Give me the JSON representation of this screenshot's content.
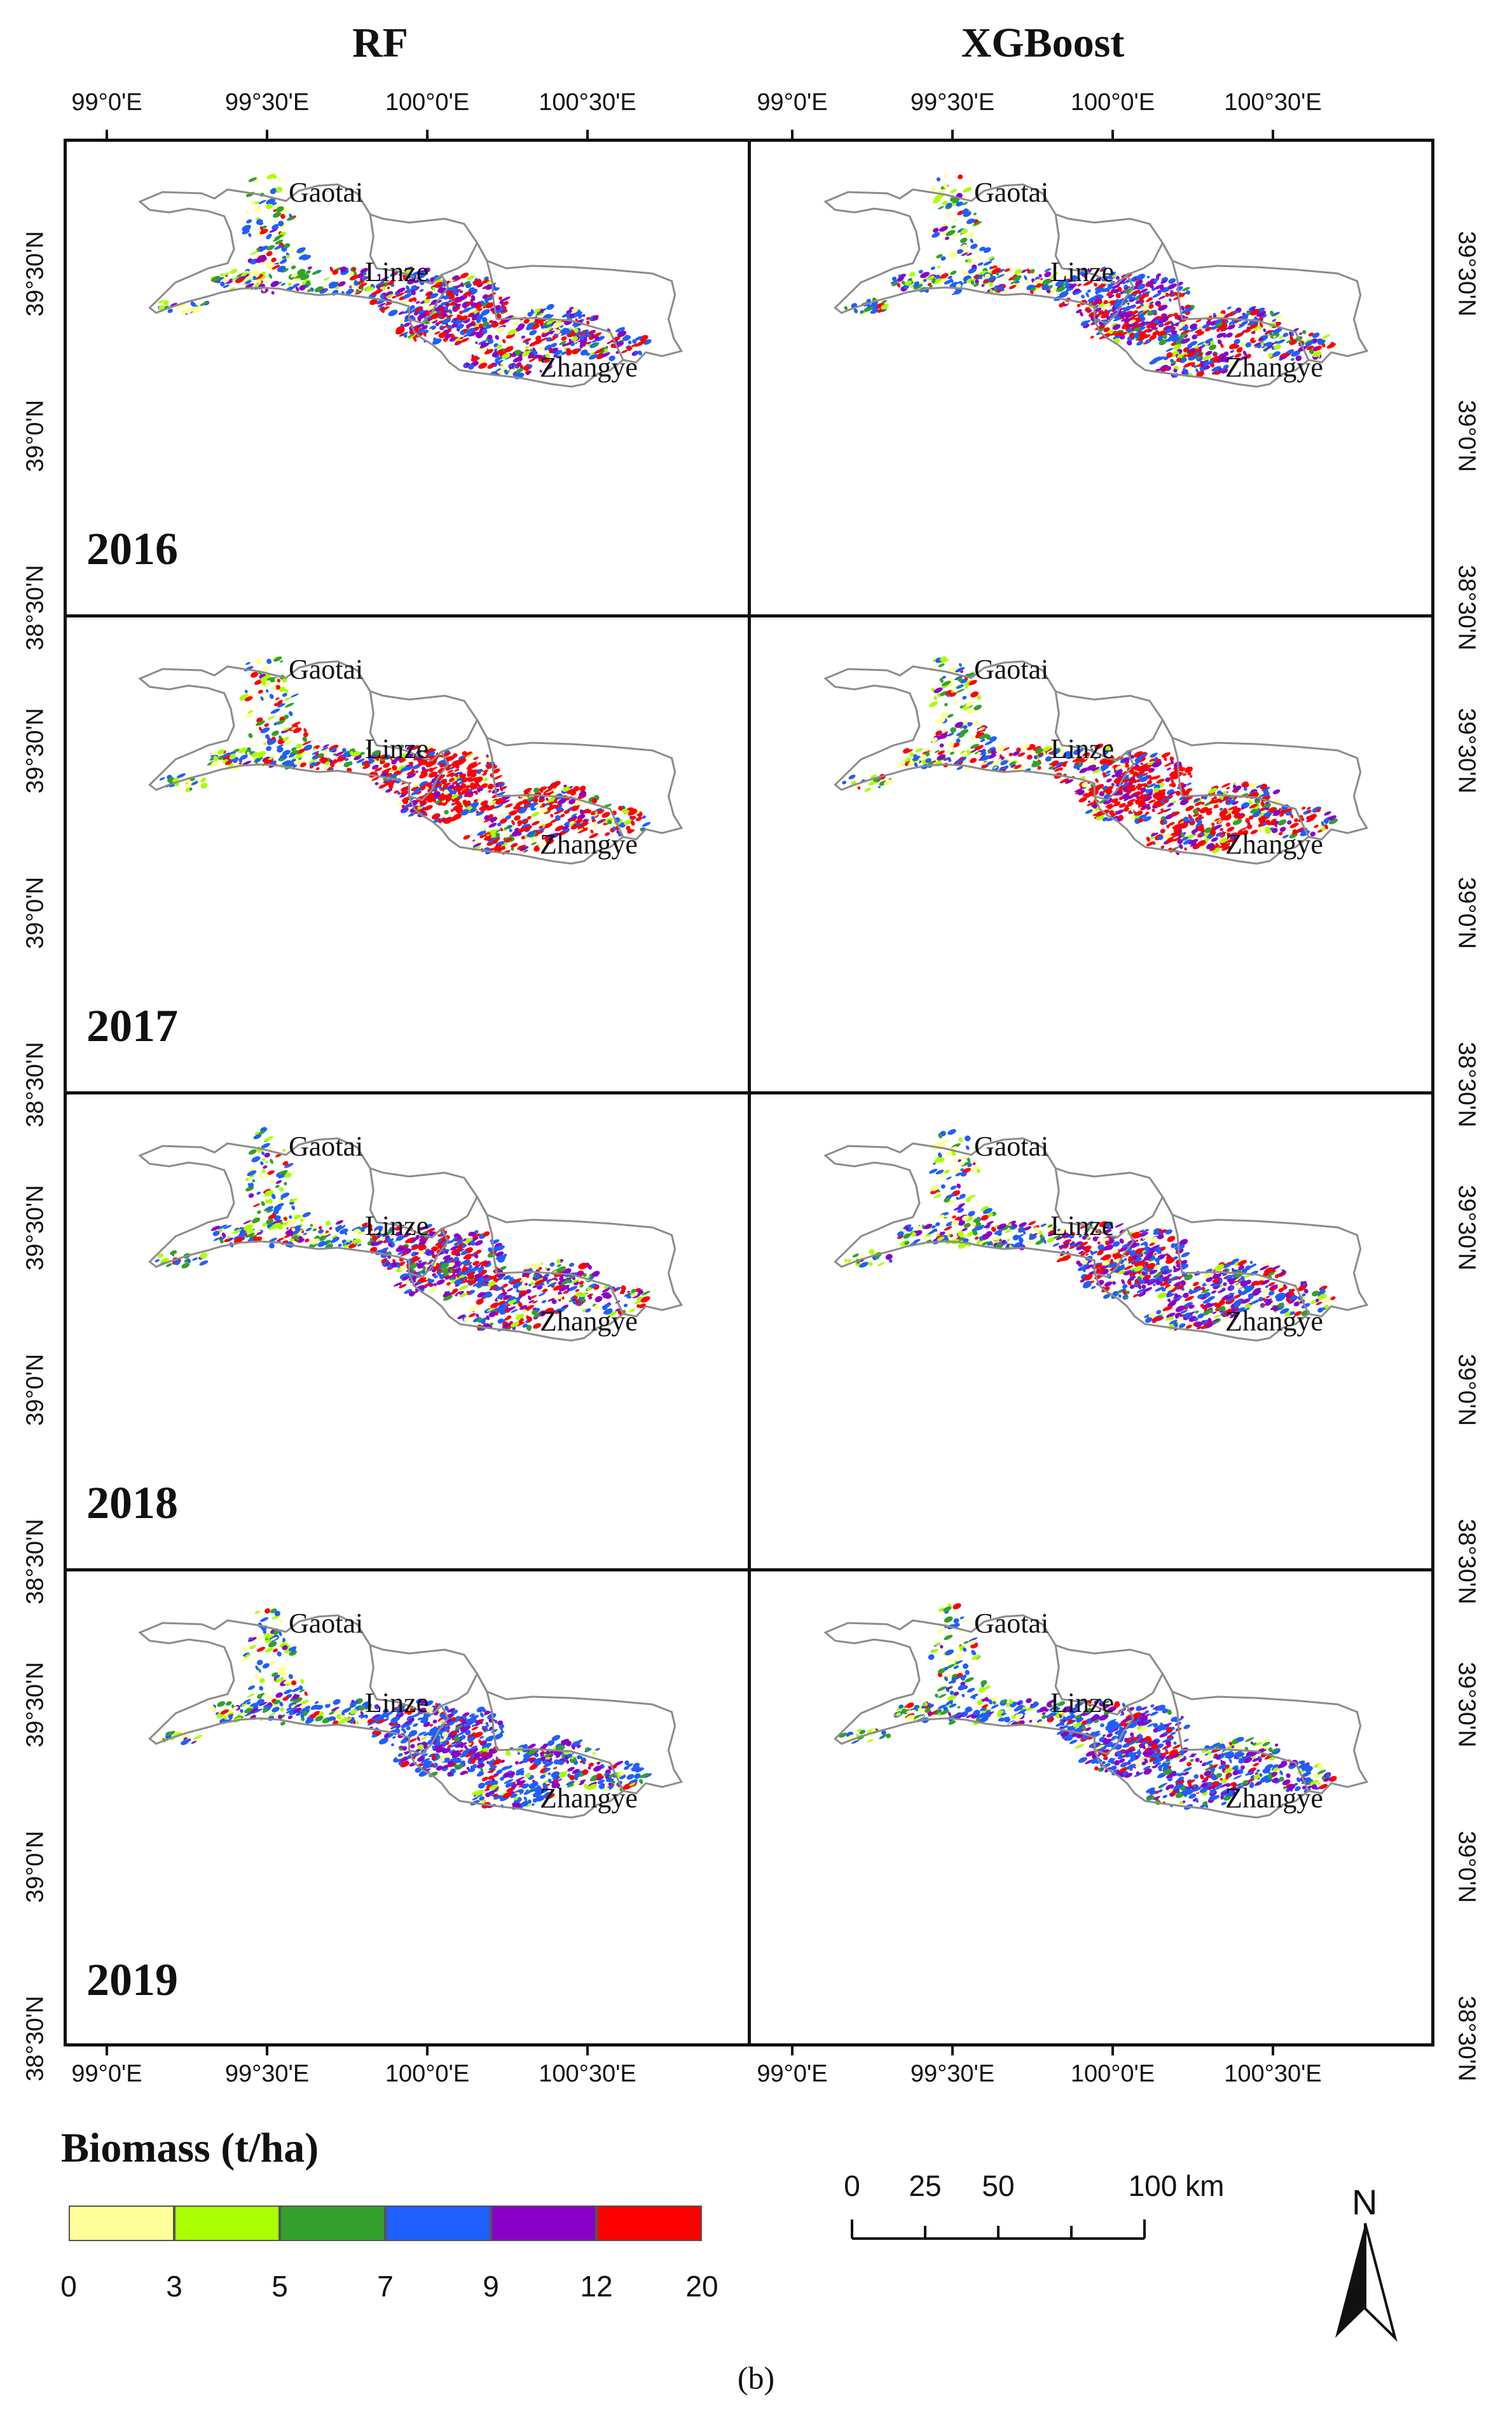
{
  "columns": [
    {
      "title": "RF"
    },
    {
      "title": "XGBoost"
    }
  ],
  "years": [
    "2016",
    "2017",
    "2018",
    "2019"
  ],
  "place_names": {
    "gaotai": "Gaotai",
    "linze": "Linze",
    "zhangye": "Zhangye"
  },
  "lon_ticks": [
    "99°0'E",
    "99°30'E",
    "100°0'E",
    "100°30'E"
  ],
  "lat_ticks": [
    "39°30'N",
    "39°0'N",
    "38°30'N"
  ],
  "legend": {
    "title": "Biomass (t/ha)",
    "bins": [
      {
        "from": 0,
        "to": 3,
        "color": "#ffff99"
      },
      {
        "from": 3,
        "to": 5,
        "color": "#aaff00"
      },
      {
        "from": 5,
        "to": 7,
        "color": "#33a02c"
      },
      {
        "from": 7,
        "to": 9,
        "color": "#1f5fff"
      },
      {
        "from": 9,
        "to": 12,
        "color": "#8a00c8"
      },
      {
        "from": 12,
        "to": 20,
        "color": "#ff0000"
      }
    ],
    "labels": [
      "0",
      "3",
      "5",
      "7",
      "9",
      "12",
      "20"
    ]
  },
  "scale_bar": {
    "labels": [
      "0",
      "25",
      "50",
      "100 km"
    ]
  },
  "north_arrow": {
    "label": "N"
  },
  "caption": "(b)"
}
